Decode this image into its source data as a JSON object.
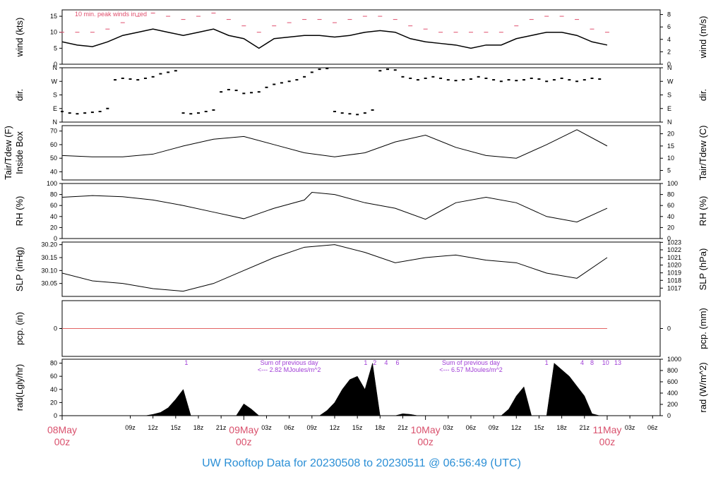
{
  "footer": {
    "prefix": "UW Rooftop Data for",
    "start": "20230508",
    "to": "to",
    "end": "20230511",
    "at": "@ 06:56:49",
    "tz": "(UTC)"
  },
  "colors": {
    "axis": "#000000",
    "peak": "#e0506e",
    "date": "#d9506c",
    "note": "#a03dd6",
    "footer": "#2b8fd6",
    "zero": "#e26464"
  },
  "chart_data": [
    {
      "id": "wind",
      "type": "line",
      "left_label": "wind (kts)",
      "right_label": "wind (m/s)",
      "annotation": "10 min. peak winds in red",
      "ylim": [
        0,
        17
      ],
      "yticks_left": [
        0,
        5,
        10,
        15
      ],
      "yticks_right_labels": [
        "0",
        "2",
        "4",
        "6",
        "8"
      ],
      "yticks_right_values": [
        0,
        3.89,
        7.78,
        11.66,
        15.55
      ],
      "series": [
        {
          "role": "mean",
          "color": "#000000",
          "x": [
            0,
            2,
            4,
            6,
            8,
            10,
            12,
            14,
            16,
            18,
            20,
            22,
            24,
            26,
            28,
            30,
            32,
            34,
            36,
            38,
            40,
            42,
            44,
            46,
            48,
            50,
            52,
            54,
            56,
            58,
            60,
            62,
            64,
            66,
            68,
            70,
            72
          ],
          "y": [
            7,
            6,
            5.5,
            7,
            9,
            10,
            11,
            10,
            9,
            10,
            11,
            9,
            8,
            5,
            8,
            8.5,
            9,
            9,
            8.5,
            9,
            10,
            10.5,
            10,
            8,
            7,
            6.5,
            6,
            5,
            6,
            6,
            8,
            9,
            10,
            10,
            9,
            7,
            6
          ]
        },
        {
          "role": "peak-10min",
          "color": "#e0506e",
          "x": [
            0,
            2,
            4,
            6,
            8,
            10,
            12,
            14,
            16,
            18,
            20,
            22,
            24,
            26,
            28,
            30,
            32,
            34,
            36,
            38,
            40,
            42,
            44,
            46,
            48,
            50,
            52,
            54,
            56,
            58,
            60,
            62,
            64,
            66,
            68,
            70,
            72
          ],
          "y": [
            10,
            10,
            10,
            11,
            13,
            15,
            16,
            15,
            14,
            15,
            16,
            14,
            12,
            10,
            12,
            13,
            14,
            14,
            13,
            14,
            15,
            15,
            14,
            12,
            11,
            10,
            10,
            10,
            10,
            10,
            12,
            14,
            15,
            15,
            14,
            11,
            10
          ]
        }
      ]
    },
    {
      "id": "dir",
      "type": "scatter",
      "left_label": "dir.",
      "right_label": "dir.",
      "ylim": [
        0,
        360
      ],
      "yticks": [
        0,
        90,
        180,
        270,
        360
      ],
      "yticklabels": [
        "N",
        "E",
        "S",
        "W",
        "N"
      ],
      "x": [
        0,
        1,
        2,
        3,
        4,
        5,
        6,
        7,
        8,
        9,
        10,
        11,
        12,
        13,
        14,
        15,
        16,
        17,
        18,
        19,
        20,
        21,
        22,
        23,
        24,
        25,
        26,
        27,
        28,
        29,
        30,
        31,
        32,
        33,
        34,
        35,
        36,
        37,
        38,
        39,
        40,
        41,
        42,
        43,
        44,
        45,
        46,
        47,
        48,
        49,
        50,
        51,
        52,
        53,
        54,
        55,
        56,
        57,
        58,
        59,
        60,
        61,
        62,
        63,
        64,
        65,
        66,
        67,
        68,
        69,
        70,
        71
      ],
      "y": [
        70,
        60,
        55,
        60,
        65,
        70,
        90,
        280,
        290,
        285,
        280,
        290,
        300,
        320,
        330,
        340,
        60,
        55,
        60,
        70,
        80,
        200,
        215,
        210,
        190,
        195,
        200,
        230,
        250,
        260,
        270,
        280,
        300,
        330,
        350,
        355,
        70,
        60,
        55,
        50,
        60,
        80,
        340,
        350,
        345,
        300,
        290,
        280,
        290,
        300,
        290,
        280,
        275,
        280,
        285,
        300,
        290,
        280,
        270,
        280,
        275,
        280,
        290,
        285,
        270,
        280,
        290,
        280,
        270,
        280,
        290,
        285
      ]
    },
    {
      "id": "temp",
      "type": "line",
      "left_label_line1": "Tair/Tdew (F)",
      "left_label_line2": "Inside Box",
      "right_label": "Tair/Tdew (C)",
      "ylim": [
        34,
        74
      ],
      "yticks_left": [
        40,
        50,
        60,
        70
      ],
      "yticks_right_labels": [
        "5",
        "10",
        "15",
        "20"
      ],
      "yticks_right_values": [
        41,
        50,
        59,
        68
      ],
      "x": [
        0,
        4,
        8,
        12,
        16,
        20,
        24,
        28,
        32,
        36,
        40,
        44,
        48,
        52,
        56,
        60,
        64,
        68,
        72
      ],
      "y": [
        52,
        51,
        51,
        53,
        59,
        64,
        66,
        60,
        54,
        51,
        54,
        62,
        67,
        58,
        52,
        50,
        60,
        71,
        59
      ]
    },
    {
      "id": "rh",
      "type": "line",
      "left_label": "RH (%)",
      "right_label": "RH (%)",
      "ylim": [
        0,
        100
      ],
      "yticks_left": [
        0,
        20,
        40,
        60,
        80,
        100
      ],
      "yticks_right": [
        0,
        20,
        40,
        60,
        80,
        100
      ],
      "x": [
        0,
        4,
        8,
        12,
        16,
        20,
        24,
        28,
        32,
        33,
        36,
        40,
        44,
        48,
        52,
        56,
        60,
        64,
        68,
        72
      ],
      "y": [
        75,
        78,
        76,
        70,
        60,
        48,
        36,
        55,
        70,
        84,
        80,
        65,
        55,
        35,
        65,
        75,
        65,
        40,
        30,
        55
      ]
    },
    {
      "id": "slp",
      "type": "line",
      "left_label": "SLP (inHg)",
      "right_label": "SLP (hPa)",
      "ylim": [
        30.0,
        30.21
      ],
      "yticks_left": [
        30.05,
        30.1,
        30.15,
        30.2
      ],
      "yticklabels_left": [
        "30.05",
        "30.10",
        "30.15",
        "30.20"
      ],
      "yticks_right_labels": [
        "1017",
        "1018",
        "1019",
        "1020",
        "1021",
        "1022",
        "1023"
      ],
      "yticks_right_values": [
        30.032,
        30.062,
        30.091,
        30.121,
        30.15,
        30.18,
        30.209
      ],
      "x": [
        0,
        4,
        8,
        12,
        16,
        20,
        24,
        28,
        32,
        36,
        40,
        44,
        48,
        52,
        56,
        60,
        64,
        68,
        72
      ],
      "y": [
        30.09,
        30.06,
        30.05,
        30.03,
        30.02,
        30.05,
        30.1,
        30.15,
        30.19,
        30.2,
        30.17,
        30.13,
        30.15,
        30.16,
        30.14,
        30.13,
        30.09,
        30.07,
        30.15
      ]
    },
    {
      "id": "pcp",
      "type": "line",
      "left_label": "pcp. (in)",
      "right_label": "pcp. (mm)",
      "ylim": [
        -1,
        1
      ],
      "yticks_left": [
        0
      ],
      "yticks_right": [
        0
      ],
      "x": [
        0,
        72
      ],
      "y": [
        0,
        0
      ]
    },
    {
      "id": "rad",
      "type": "area",
      "left_label": "rad(Lgly/hr)",
      "right_label": "rad (W/m^2)",
      "ylim": [
        0,
        86
      ],
      "yticks_left": [
        0,
        20,
        40,
        60,
        80
      ],
      "yticks_right_labels": [
        "0",
        "200",
        "400",
        "600",
        "800",
        "1000"
      ],
      "yticks_right_values": [
        0,
        17.2,
        34.4,
        51.6,
        68.8,
        86
      ],
      "x": [
        0,
        11,
        12,
        13,
        14,
        15,
        16,
        17,
        18,
        19,
        20,
        21,
        22,
        23,
        24,
        25,
        26,
        27,
        28,
        29,
        30,
        31,
        32,
        33,
        34,
        35,
        36,
        37,
        38,
        39,
        40,
        41,
        42,
        43,
        44,
        45,
        46,
        47,
        48,
        49,
        50,
        51,
        52,
        53,
        54,
        55,
        56,
        57,
        58,
        59,
        60,
        61,
        62,
        63,
        64,
        65,
        66,
        67,
        68,
        69,
        70,
        71
      ],
      "y": [
        0,
        0,
        2,
        5,
        12,
        25,
        40,
        0,
        0,
        0,
        0,
        0,
        0,
        0,
        18,
        10,
        0,
        0,
        0,
        0,
        0,
        0,
        0,
        0,
        0,
        8,
        20,
        40,
        55,
        60,
        40,
        80,
        0,
        0,
        0,
        3,
        2,
        0,
        0,
        0,
        0,
        0,
        0,
        0,
        0,
        0,
        0,
        0,
        0,
        10,
        30,
        44,
        0,
        0,
        0,
        80,
        70,
        60,
        45,
        30,
        3,
        0
      ],
      "annotations": [
        {
          "text": "Sum of previous day",
          "x": 30
        },
        {
          "text": "<--- 2.82 MJoules/m^2",
          "x": 30
        },
        {
          "text": "Sum of previous day",
          "x": 54
        },
        {
          "text": "<--- 6.57 MJoules/m^2",
          "x": 54
        }
      ],
      "hour_marks": [
        {
          "text": "1",
          "x": 16.4
        },
        {
          "text": "1",
          "x": 40.1
        },
        {
          "text": "2",
          "x": 41.3
        },
        {
          "text": "4",
          "x": 42.8
        },
        {
          "text": "6",
          "x": 44.3
        },
        {
          "text": "1",
          "x": 64.0
        },
        {
          "text": "4",
          "x": 68.7
        },
        {
          "text": "8",
          "x": 70.0
        },
        {
          "text": "10",
          "x": 71.8
        },
        {
          "text": "13",
          "x": 73.4
        }
      ]
    }
  ],
  "time_axis": {
    "xlim": [
      0,
      79
    ],
    "hour_ticks": [
      {
        "label": "09z",
        "x": 9
      },
      {
        "label": "12z",
        "x": 12
      },
      {
        "label": "15z",
        "x": 15
      },
      {
        "label": "18z",
        "x": 18
      },
      {
        "label": "21z",
        "x": 21
      },
      {
        "label": "03z",
        "x": 27
      },
      {
        "label": "06z",
        "x": 30
      },
      {
        "label": "09z",
        "x": 33
      },
      {
        "label": "12z",
        "x": 36
      },
      {
        "label": "15z",
        "x": 39
      },
      {
        "label": "18z",
        "x": 42
      },
      {
        "label": "21z",
        "x": 45
      },
      {
        "label": "03z",
        "x": 51
      },
      {
        "label": "06z",
        "x": 54
      },
      {
        "label": "09z",
        "x": 57
      },
      {
        "label": "12z",
        "x": 60
      },
      {
        "label": "15z",
        "x": 63
      },
      {
        "label": "18z",
        "x": 66
      },
      {
        "label": "21z",
        "x": 69
      },
      {
        "label": "03z",
        "x": 75
      },
      {
        "label": "06z",
        "x": 78
      }
    ],
    "date_ticks": [
      {
        "date": "08May",
        "time": "00z",
        "x": 0
      },
      {
        "date": "09May",
        "time": "00z",
        "x": 24
      },
      {
        "date": "10May",
        "time": "00z",
        "x": 48
      },
      {
        "date": "11May",
        "time": "00z",
        "x": 72
      }
    ]
  }
}
